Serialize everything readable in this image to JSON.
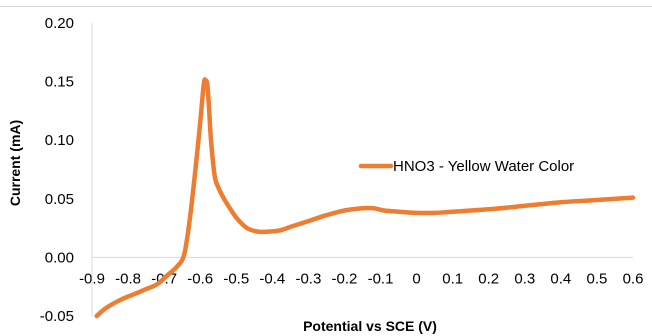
{
  "chart_data": {
    "type": "line",
    "title": "",
    "xlabel": "Potential  vs SCE (V)",
    "ylabel": "Current (mA)",
    "xlim": [
      -0.9,
      0.6
    ],
    "ylim": [
      -0.05,
      0.2
    ],
    "x_ticks": [
      "-0.9",
      "-0.8",
      "-0.7",
      "-0.6",
      "-0.5",
      "-0.4",
      "-0.3",
      "-0.2",
      "-0.1",
      "0",
      "0.1",
      "0.2",
      "0.3",
      "0.4",
      "0.5",
      "0.6"
    ],
    "y_ticks": [
      "-0.05",
      "0.00",
      "0.05",
      "0.10",
      "0.15",
      "0.20"
    ],
    "grid": false,
    "legend_position": "right",
    "series": [
      {
        "name": "HNO3 - Yellow Water Color",
        "color": "#ED7D31",
        "x": [
          -0.887,
          -0.86,
          -0.82,
          -0.78,
          -0.75,
          -0.72,
          -0.69,
          -0.665,
          -0.645,
          -0.63,
          -0.615,
          -0.6,
          -0.59,
          -0.585,
          -0.58,
          -0.575,
          -0.57,
          -0.56,
          -0.55,
          -0.53,
          -0.5,
          -0.47,
          -0.44,
          -0.41,
          -0.38,
          -0.35,
          -0.3,
          -0.25,
          -0.2,
          -0.15,
          -0.12,
          -0.09,
          -0.05,
          0,
          0.05,
          0.1,
          0.2,
          0.3,
          0.4,
          0.5,
          0.6
        ],
        "y": [
          -0.05,
          -0.043,
          -0.036,
          -0.031,
          -0.027,
          -0.023,
          -0.015,
          -0.008,
          0.002,
          0.03,
          0.07,
          0.115,
          0.148,
          0.151,
          0.147,
          0.125,
          0.1,
          0.07,
          0.06,
          0.048,
          0.034,
          0.025,
          0.022,
          0.022,
          0.023,
          0.026,
          0.031,
          0.036,
          0.04,
          0.042,
          0.042,
          0.04,
          0.039,
          0.038,
          0.038,
          0.039,
          0.041,
          0.044,
          0.047,
          0.049,
          0.051
        ]
      }
    ]
  }
}
